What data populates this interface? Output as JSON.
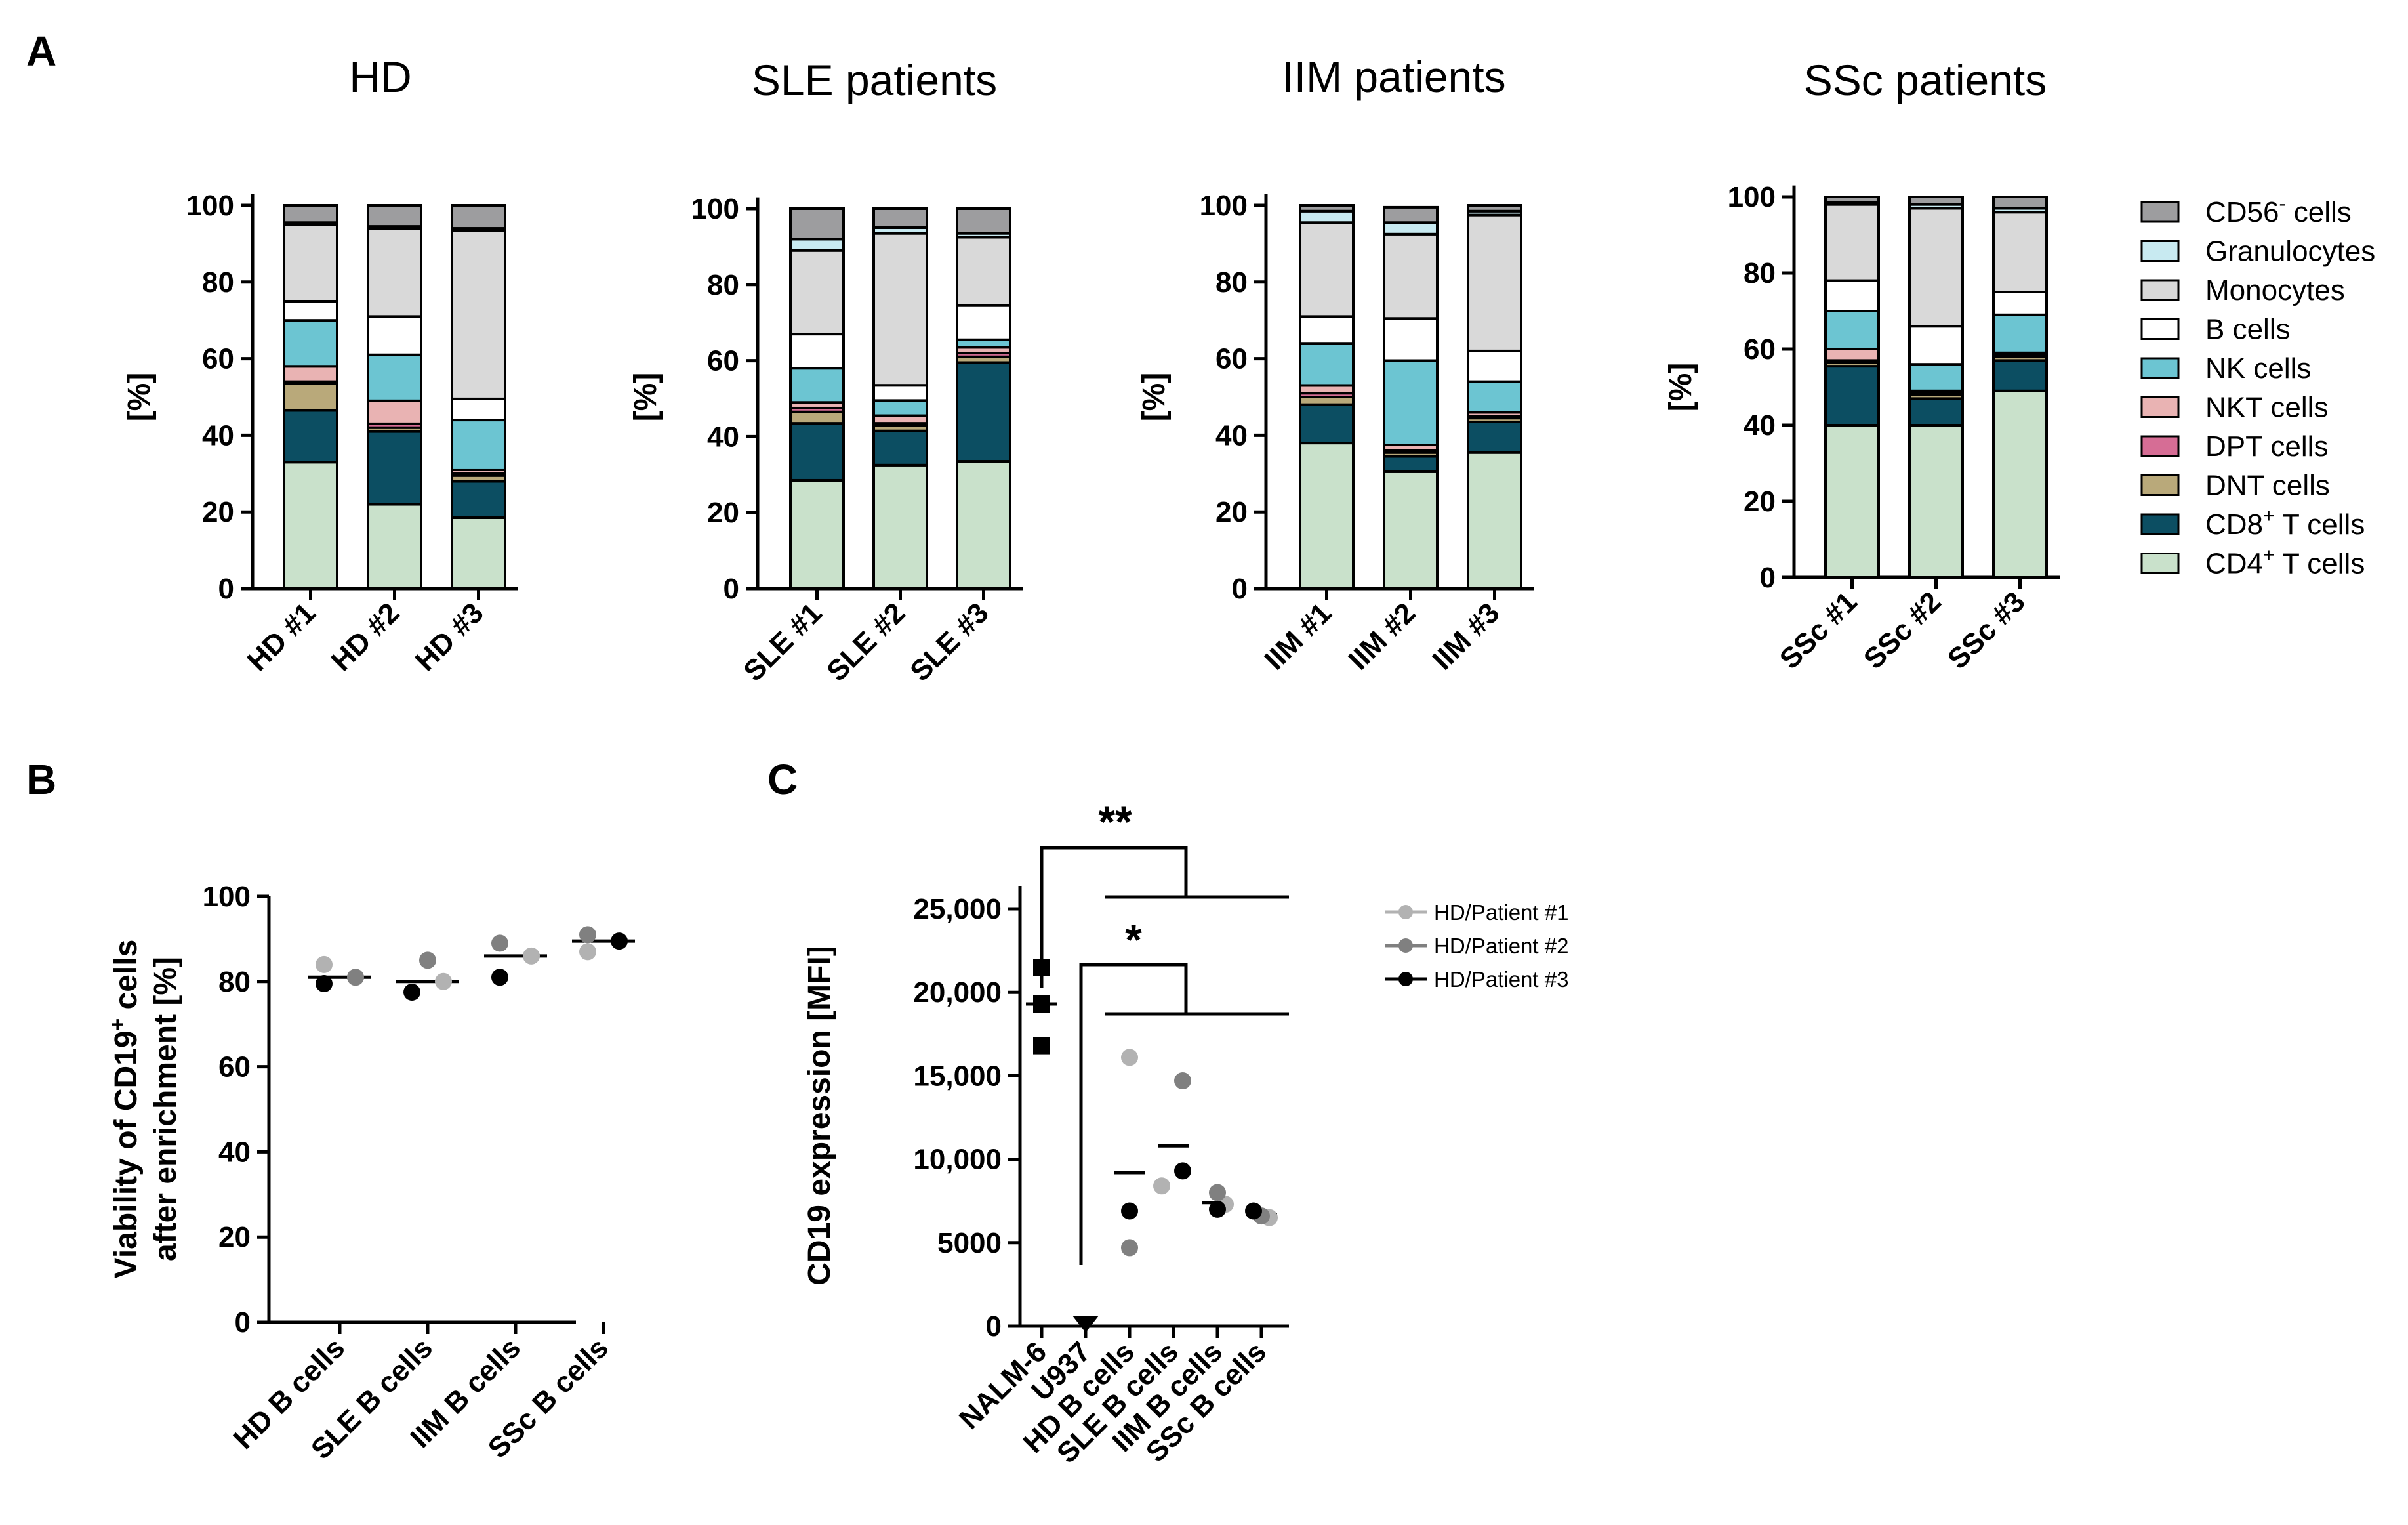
{
  "panels": {
    "a": "A",
    "b": "B",
    "c": "C"
  },
  "legend_a": [
    {
      "name": "CD56",
      "sup": "-",
      "rest": " cells",
      "color": "#9d9d9f"
    },
    {
      "name": "Granulocytes",
      "sup": "",
      "rest": "",
      "color": "#c8eaf1"
    },
    {
      "name": "Monocytes",
      "sup": "",
      "rest": "",
      "color": "#d9d9d9"
    },
    {
      "name": "B cells",
      "sup": "",
      "rest": "",
      "color": "#ffffff"
    },
    {
      "name": "NK cells",
      "sup": "",
      "rest": "",
      "color": "#6cc5d2"
    },
    {
      "name": "NKT cells",
      "sup": "",
      "rest": "",
      "color": "#e9b3b3"
    },
    {
      "name": "DPT cells",
      "sup": "",
      "rest": "",
      "color": "#d66d95"
    },
    {
      "name": "DNT cells",
      "sup": "",
      "rest": "",
      "color": "#b9a97a"
    },
    {
      "name": "CD8",
      "sup": "+",
      "rest": " T cells",
      "color": "#0c4e62"
    },
    {
      "name": "CD4",
      "sup": "+",
      "rest": " T cells",
      "color": "#c9e1cb"
    }
  ],
  "chart_data": [
    {
      "type": "bar",
      "stacked": true,
      "title": "HD",
      "ylabel": "[%]",
      "ylim": [
        0,
        100
      ],
      "yticks": [
        "0",
        "20",
        "40",
        "60",
        "80",
        "100"
      ],
      "categories": [
        "HD #1",
        "HD #2",
        "HD #3"
      ],
      "series": [
        {
          "name": "CD4+ T cells",
          "values": [
            33,
            22,
            18.5
          ]
        },
        {
          "name": "CD8+ T cells",
          "values": [
            13.5,
            19,
            9.5
          ]
        },
        {
          "name": "DNT cells",
          "values": [
            7,
            1,
            1.5
          ]
        },
        {
          "name": "DPT cells",
          "values": [
            0.5,
            1,
            0.5
          ]
        },
        {
          "name": "NKT cells",
          "values": [
            4,
            6,
            1
          ]
        },
        {
          "name": "NK cells",
          "values": [
            12,
            12,
            13
          ]
        },
        {
          "name": "B cells",
          "values": [
            5,
            10,
            5.5
          ]
        },
        {
          "name": "Monocytes",
          "values": [
            20,
            23,
            44
          ]
        },
        {
          "name": "Granulocytes",
          "values": [
            0.5,
            0.5,
            0.5
          ]
        },
        {
          "name": "CD56- cells",
          "values": [
            4.5,
            5.5,
            6
          ]
        }
      ]
    },
    {
      "type": "bar",
      "stacked": true,
      "title": "SLE patients",
      "ylabel": "[%]",
      "ylim": [
        0,
        100
      ],
      "yticks": [
        "0",
        "20",
        "40",
        "60",
        "80",
        "100"
      ],
      "categories": [
        "SLE #1",
        "SLE #2",
        "SLE #3"
      ],
      "series": [
        {
          "name": "CD4+ T cells",
          "values": [
            28.5,
            32.5,
            33.5
          ]
        },
        {
          "name": "CD8+ T cells",
          "values": [
            15,
            9,
            26
          ]
        },
        {
          "name": "DNT cells",
          "values": [
            3,
            1.5,
            1.5
          ]
        },
        {
          "name": "DPT cells",
          "values": [
            1,
            0.5,
            1
          ]
        },
        {
          "name": "NKT cells",
          "values": [
            1.5,
            2,
            1.5
          ]
        },
        {
          "name": "NK cells",
          "values": [
            9,
            4,
            2
          ]
        },
        {
          "name": "B cells",
          "values": [
            9,
            4,
            9
          ]
        },
        {
          "name": "Monocytes",
          "values": [
            22,
            40,
            18
          ]
        },
        {
          "name": "Granulocytes",
          "values": [
            3,
            1.5,
            1
          ]
        },
        {
          "name": "CD56- cells",
          "values": [
            8,
            5,
            6.5
          ]
        }
      ]
    },
    {
      "type": "bar",
      "stacked": true,
      "title": "IIM patients",
      "ylabel": "[%]",
      "ylim": [
        0,
        100
      ],
      "yticks": [
        "0",
        "20",
        "40",
        "60",
        "80",
        "100"
      ],
      "categories": [
        "IIM #1",
        "IIM #2",
        "IIM #3"
      ],
      "series": [
        {
          "name": "CD4+ T cells",
          "values": [
            38,
            30.5,
            35.5
          ]
        },
        {
          "name": "CD8+ T cells",
          "values": [
            10,
            4,
            8
          ]
        },
        {
          "name": "DNT cells",
          "values": [
            2,
            1,
            1
          ]
        },
        {
          "name": "DPT cells",
          "values": [
            1,
            0.5,
            0.5
          ]
        },
        {
          "name": "NKT cells",
          "values": [
            2,
            1.5,
            1
          ]
        },
        {
          "name": "NK cells",
          "values": [
            11,
            22,
            8
          ]
        },
        {
          "name": "B cells",
          "values": [
            7,
            11,
            8
          ]
        },
        {
          "name": "Monocytes",
          "values": [
            24.5,
            22,
            35.5
          ]
        },
        {
          "name": "Granulocytes",
          "values": [
            3,
            3,
            1
          ]
        },
        {
          "name": "CD56- cells",
          "values": [
            1.5,
            4,
            1.5
          ]
        }
      ]
    },
    {
      "type": "bar",
      "stacked": true,
      "title": "SSc patients",
      "ylabel": "[%]",
      "ylim": [
        0,
        100
      ],
      "yticks": [
        "0",
        "20",
        "40",
        "60",
        "80",
        "100"
      ],
      "categories": [
        "SSc #1",
        "SSc #2",
        "SSc #3"
      ],
      "series": [
        {
          "name": "CD4+ T cells",
          "values": [
            40,
            40,
            49
          ]
        },
        {
          "name": "CD8+ T cells",
          "values": [
            15.5,
            7,
            8
          ]
        },
        {
          "name": "DNT cells",
          "values": [
            1,
            1,
            1
          ]
        },
        {
          "name": "DPT cells",
          "values": [
            0.5,
            0.5,
            0.5
          ]
        },
        {
          "name": "NKT cells",
          "values": [
            3,
            0.5,
            0.5
          ]
        },
        {
          "name": "NK cells",
          "values": [
            10,
            7,
            10
          ]
        },
        {
          "name": "B cells",
          "values": [
            8,
            10,
            6
          ]
        },
        {
          "name": "Monocytes",
          "values": [
            20,
            31,
            21
          ]
        },
        {
          "name": "Granulocytes",
          "values": [
            0.5,
            1,
            1
          ]
        },
        {
          "name": "CD56- cells",
          "values": [
            1.5,
            2,
            3
          ]
        }
      ]
    },
    {
      "type": "scatter",
      "ylabel_line1": "Viability of CD19",
      "ylabel_sup": "+",
      "ylabel_line1_rest": " cells",
      "ylabel_line2": "after enrichment [%]",
      "ylim": [
        0,
        100
      ],
      "yticks": [
        "0",
        "20",
        "40",
        "60",
        "80",
        "100"
      ],
      "categories": [
        "HD B cells",
        "SLE B cells",
        "IIM B cells",
        "SSc B cells"
      ],
      "series": [
        {
          "name": "HD/Patient #1",
          "values": [
            84,
            80,
            86,
            87
          ],
          "color": "#b2b2b2"
        },
        {
          "name": "HD/Patient #2",
          "values": [
            81,
            85,
            89,
            91
          ],
          "color": "#808080"
        },
        {
          "name": "HD/Patient #3",
          "values": [
            79.5,
            77.5,
            81,
            89.5
          ],
          "color": "#000000"
        }
      ],
      "means": [
        81,
        80,
        86,
        89.5
      ]
    },
    {
      "type": "scatter",
      "ylabel": "CD19 expression [MFI]",
      "ylim": [
        0,
        25000
      ],
      "yticks": [
        "0",
        "5000",
        "10,000",
        "15,000",
        "20,000",
        "25,000"
      ],
      "categories": [
        "NALM-6",
        "U937",
        "HD B cells",
        "SLE B cells",
        "IIM B cells",
        "SSc B cells"
      ],
      "cell_lines": {
        "NALM-6": [
          21500,
          19300,
          16800
        ],
        "U937": [
          80
        ]
      },
      "series": [
        {
          "name": "HD/Patient #1",
          "values": [
            16100,
            8400,
            7300,
            6500
          ],
          "color": "#b2b2b2"
        },
        {
          "name": "HD/Patient #2",
          "values": [
            4700,
            14700,
            8000,
            6600
          ],
          "color": "#808080"
        },
        {
          "name": "HD/Patient #3",
          "values": [
            6900,
            9300,
            7000,
            6900
          ],
          "color": "#000000"
        }
      ],
      "means": [
        19300,
        80,
        9200,
        10800,
        7400,
        6700
      ],
      "annotations": [
        "**",
        "*"
      ]
    }
  ]
}
